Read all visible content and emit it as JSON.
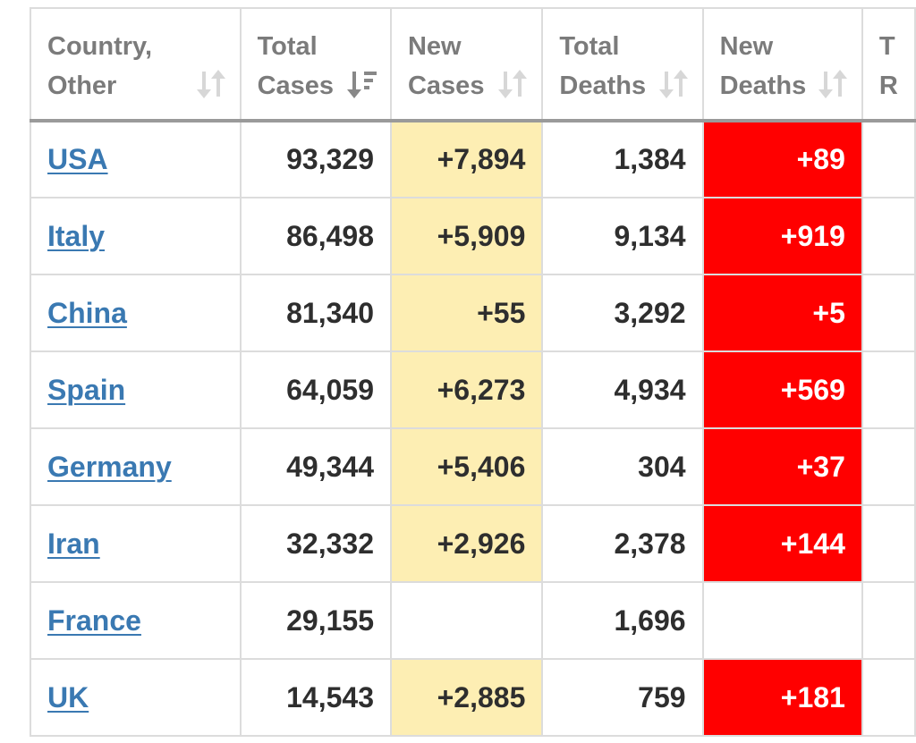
{
  "table": {
    "headers": [
      {
        "line1": "Country,",
        "line2": "Other"
      },
      {
        "line1": "Total",
        "line2": "Cases"
      },
      {
        "line1": "New",
        "line2": "Cases"
      },
      {
        "line1": "Total",
        "line2": "Deaths"
      },
      {
        "line1": "New",
        "line2": "Deaths"
      },
      {
        "line1": "T",
        "line2": "R"
      }
    ],
    "rows": [
      {
        "country": "USA",
        "total_cases": "93,329",
        "new_cases": "+7,894",
        "total_deaths": "1,384",
        "new_deaths": "+89"
      },
      {
        "country": "Italy",
        "total_cases": "86,498",
        "new_cases": "+5,909",
        "total_deaths": "9,134",
        "new_deaths": "+919"
      },
      {
        "country": "China",
        "total_cases": "81,340",
        "new_cases": "+55",
        "total_deaths": "3,292",
        "new_deaths": "+5"
      },
      {
        "country": "Spain",
        "total_cases": "64,059",
        "new_cases": "+6,273",
        "total_deaths": "4,934",
        "new_deaths": "+569"
      },
      {
        "country": "Germany",
        "total_cases": "49,344",
        "new_cases": "+5,406",
        "total_deaths": "304",
        "new_deaths": "+37"
      },
      {
        "country": "Iran",
        "total_cases": "32,332",
        "new_cases": "+2,926",
        "total_deaths": "2,378",
        "new_deaths": "+144"
      },
      {
        "country": "France",
        "total_cases": "29,155",
        "new_cases": "",
        "total_deaths": "1,696",
        "new_deaths": ""
      },
      {
        "country": "UK",
        "total_cases": "14,543",
        "new_cases": "+2,885",
        "total_deaths": "759",
        "new_deaths": "+181"
      }
    ]
  },
  "colors": {
    "link": "#3a79b2",
    "new_cases_highlight": "#fdeeb3",
    "new_deaths_highlight": "#ff0000",
    "header_text": "#7b7b7b",
    "cell_text": "#2e2e2e"
  },
  "icons": {
    "sort_inactive": "sort-arrows-icon",
    "sort_active": "sort-descending-icon"
  }
}
